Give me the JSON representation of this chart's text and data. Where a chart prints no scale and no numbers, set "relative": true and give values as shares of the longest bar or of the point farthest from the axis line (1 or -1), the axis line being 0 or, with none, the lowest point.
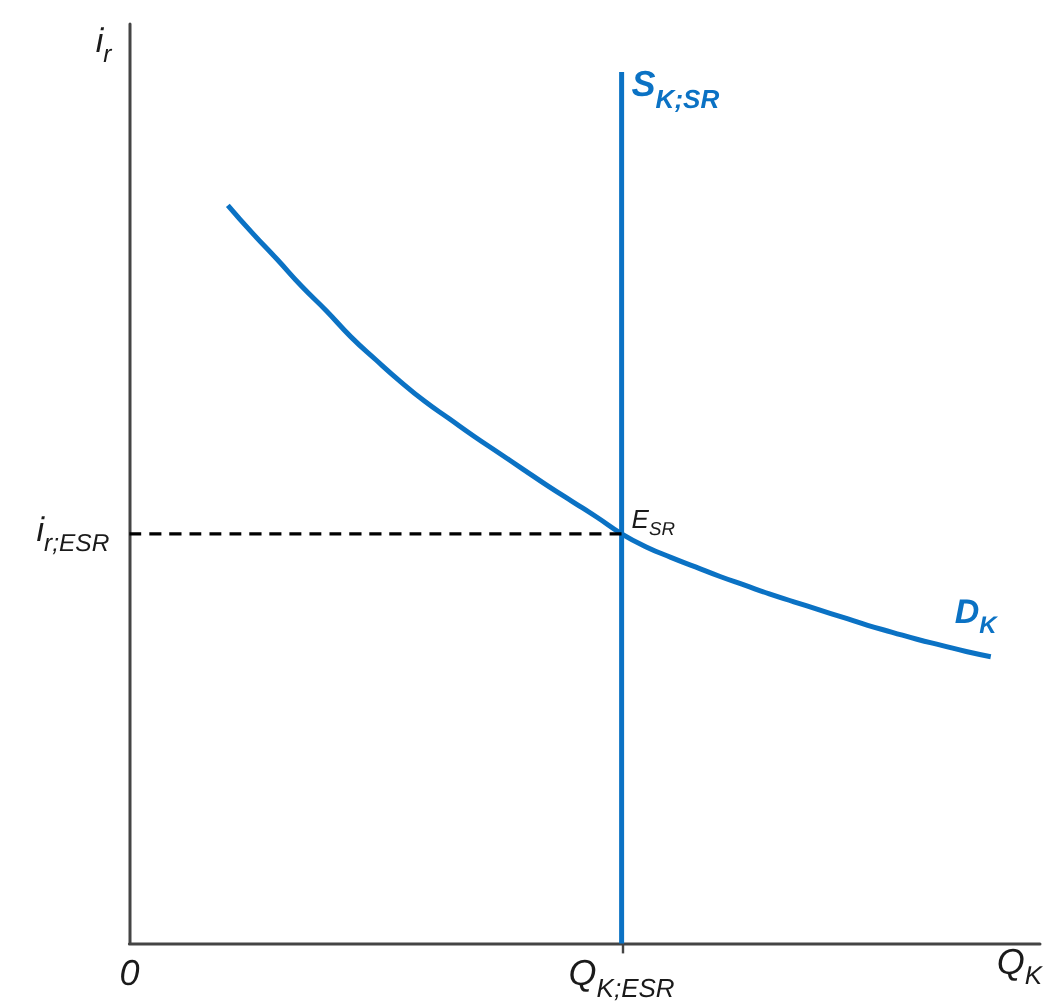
{
  "chart_data": {
    "type": "line",
    "relative": true,
    "xlabel": "Q$_{K}$",
    "ylabel": "i$_{r}$",
    "marker": "none",
    "grid": false,
    "categories": [
      "0",
      null,
      null,
      null,
      null,
      null,
      null,
      null,
      null,
      null,
      null,
      null,
      null,
      null,
      null,
      null,
      null,
      null,
      null,
      null,
      "Q$_{K;ESR}$",
      null,
      null,
      null,
      null,
      null,
      null,
      null,
      null,
      null,
      null,
      null,
      null,
      null,
      null,
      null,
      null,
      null
    ],
    "series": [
      {
        "name": "D$_{K}$",
        "color": "#0b72c4",
        "values": [
          null,
          null,
          null,
          null,
          0.847,
          0.815,
          0.785,
          0.754,
          0.726,
          0.696,
          0.67,
          0.645,
          0.622,
          0.602,
          0.582,
          0.563,
          0.544,
          0.525,
          0.507,
          0.489,
          0.47,
          0.455,
          0.443,
          0.432,
          0.421,
          0.411,
          0.401,
          0.392,
          0.383,
          0.374,
          0.365,
          0.357,
          0.349,
          0.342,
          0.335,
          0.329,
          null,
          null
        ]
      },
      {
        "name": "S$_{K;SR}$",
        "color": "#0b72c4",
        "x": [
          "Q$_{K;ESR}$",
          "Q$_{K;ESR}$"
        ],
        "values": [
          0,
          1
        ]
      },
      {
        "color": "#000000",
        "line_style": "dashed",
        "values": [
          0.47,
          0.47,
          0.47,
          0.47,
          0.47,
          0.47,
          0.47,
          0.47,
          0.47,
          0.47,
          0.47,
          0.47,
          0.47,
          0.47,
          0.47,
          0.47,
          0.47,
          0.47,
          0.47,
          0.47,
          0.47,
          null,
          null,
          null,
          null,
          null,
          null,
          null,
          null,
          null,
          null,
          null,
          null,
          null,
          null,
          null,
          null,
          null
        ]
      }
    ],
    "annotations": [
      {
        "text": "E$_{SR}$",
        "x": "Q$_{K;ESR}$",
        "y": 0.47
      },
      {
        "text": "i$_{r;ESR}$",
        "x": "0",
        "y": 0.47
      }
    ]
  }
}
